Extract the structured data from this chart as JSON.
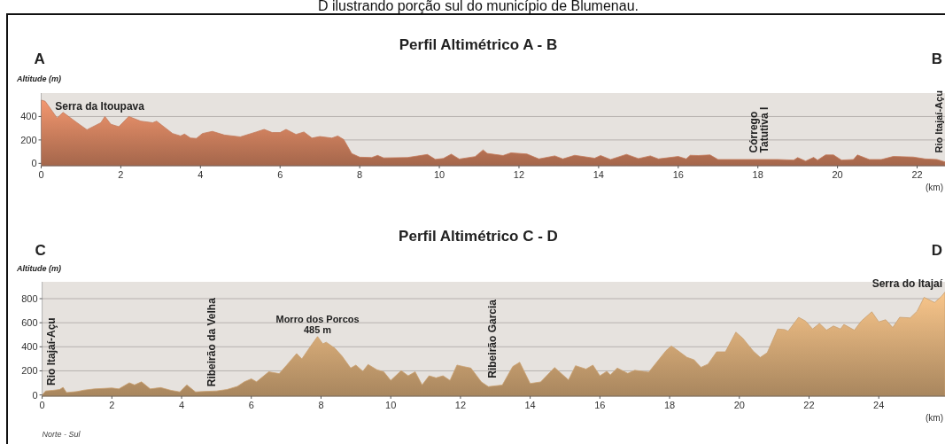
{
  "chart_data": [
    {
      "type": "area",
      "title": "Perfil Altimétrico A - B",
      "ylabel": "Altitude (m)",
      "xlabel": "(km)",
      "xlim": [
        0,
        22.7
      ],
      "ylim": [
        -20,
        600
      ],
      "xticks": [
        0,
        2,
        4,
        6,
        8,
        10,
        12,
        14,
        16,
        18,
        20,
        22
      ],
      "yticks": [
        0,
        200,
        400
      ],
      "grid": "y",
      "annotations": [
        "D ilustrando porção sul do município de Blumenau.",
        "A",
        "B",
        {
          "text": "Serra da Itoupava",
          "x": 0.35,
          "y": 460
        },
        {
          "text": "Córrego\nTatutiva I",
          "x": 18.15,
          "y": 60
        },
        {
          "text": "Rio Itajaí-Açu",
          "x": 22.6,
          "y": 60
        }
      ],
      "series": [
        {
          "color": "#c47a5a",
          "x": [
            0,
            0.1,
            0.4,
            0.55,
            0.9,
            1.15,
            1.5,
            1.6,
            1.75,
            1.95,
            2.2,
            2.5,
            2.8,
            2.9,
            3.3,
            3.5,
            3.6,
            3.75,
            3.9,
            4.05,
            4.3,
            4.6,
            5.0,
            5.4,
            5.6,
            5.8,
            6.0,
            6.15,
            6.4,
            6.6,
            6.8,
            7.0,
            7.3,
            7.45,
            7.6,
            7.8,
            8.0,
            8.3,
            8.45,
            8.6,
            9.2,
            9.7,
            9.9,
            10.1,
            10.3,
            10.5,
            10.9,
            11.1,
            11.2,
            11.6,
            11.8,
            12.2,
            12.5,
            12.9,
            13.1,
            13.4,
            13.9,
            14.05,
            14.3,
            14.7,
            15.0,
            15.3,
            15.5,
            16.0,
            16.2,
            16.3,
            16.5,
            16.8,
            17.0,
            18.5,
            18.9,
            19.0,
            19.2,
            19.4,
            19.5,
            19.7,
            19.9,
            20.1,
            20.4,
            20.5,
            20.8,
            21.1,
            21.4,
            21.9,
            22.2,
            22.5,
            22.7
          ],
          "values": [
            540,
            530,
            387,
            435,
            347,
            287,
            347,
            400,
            334,
            313,
            400,
            360,
            347,
            360,
            255,
            234,
            250,
            216,
            213,
            255,
            273,
            242,
            226,
            268,
            290,
            263,
            263,
            290,
            247,
            268,
            216,
            229,
            216,
            234,
            203,
            84,
            53,
            50,
            68,
            47,
            50,
            76,
            34,
            42,
            79,
            37,
            58,
            115,
            85,
            67,
            90,
            80,
            38,
            64,
            38,
            69,
            44,
            67,
            33,
            77,
            41,
            64,
            38,
            59,
            38,
            69,
            67,
            72,
            33,
            33,
            28,
            49,
            20,
            51,
            28,
            72,
            72,
            28,
            33,
            72,
            33,
            33,
            59,
            54,
            38,
            33,
            13
          ]
        }
      ]
    },
    {
      "type": "area",
      "title": "Perfil Altimétrico C - D",
      "ylabel": "Altitude (m)",
      "xlabel": "(km)",
      "xlim": [
        0,
        25.9
      ],
      "ylim": [
        -10,
        940
      ],
      "xticks": [
        0,
        2,
        4,
        6,
        8,
        10,
        12,
        14,
        16,
        18,
        20,
        22,
        24
      ],
      "yticks": [
        0,
        200,
        400,
        600,
        800
      ],
      "grid": "y",
      "annotations": [
        "C",
        "D",
        "Norte - Sul",
        "Rio Itajaí-Açu",
        {
          "text": "Ribeirão da Velha",
          "x": 4.85,
          "y": 40
        },
        {
          "text": "Morro dos Porcos\n485 m",
          "x": 7.9,
          "y": 485
        },
        {
          "text": "Ribeirão Garcia",
          "x": 12.9,
          "y": 110
        },
        {
          "text": "Serra do Itajaí",
          "x": 25.9,
          "y": 855
        }
      ],
      "series": [
        {
          "color": "#c9a070",
          "x": [
            0,
            0.1,
            0.3,
            0.5,
            0.6,
            0.7,
            1.0,
            1.2,
            1.5,
            2.0,
            2.2,
            2.5,
            2.65,
            2.85,
            3.1,
            3.4,
            3.7,
            3.95,
            4.15,
            4.4,
            4.6,
            5.0,
            5.3,
            5.6,
            5.8,
            6.0,
            6.15,
            6.5,
            6.8,
            7.0,
            7.3,
            7.45,
            7.7,
            7.9,
            8.05,
            8.15,
            8.4,
            8.6,
            8.85,
            9.0,
            9.2,
            9.35,
            9.6,
            9.8,
            10.0,
            10.3,
            10.5,
            10.7,
            10.9,
            11.1,
            11.3,
            11.5,
            11.7,
            11.9,
            12.1,
            12.3,
            12.6,
            12.8,
            13.2,
            13.5,
            13.7,
            14.0,
            14.3,
            14.7,
            15.1,
            15.3,
            15.6,
            15.8,
            16.0,
            16.2,
            16.3,
            16.5,
            16.8,
            17.0,
            17.4,
            17.6,
            17.9,
            18.05,
            18.2,
            18.5,
            18.7,
            18.9,
            19.1,
            19.35,
            19.6,
            19.9,
            20.1,
            20.4,
            20.6,
            20.8,
            21.1,
            21.3,
            21.4,
            21.7,
            21.9,
            22.1,
            22.3,
            22.5,
            22.7,
            22.9,
            23.0,
            23.3,
            23.5,
            23.8,
            24.0,
            24.2,
            24.4,
            24.6,
            24.9,
            25.1,
            25.3,
            25.6,
            25.8,
            25.9
          ],
          "values": [
            0,
            33,
            38,
            45,
            63,
            20,
            28,
            40,
            50,
            58,
            50,
            101,
            83,
            109,
            50,
            61,
            38,
            25,
            83,
            25,
            28,
            33,
            45,
            71,
            109,
            134,
            109,
            192,
            177,
            243,
            344,
            299,
            405,
            485,
            425,
            438,
            387,
            324,
            223,
            248,
            197,
            253,
            210,
            192,
            121,
            202,
            159,
            192,
            83,
            159,
            142,
            159,
            121,
            248,
            235,
            223,
            108,
            69,
            82,
            236,
            271,
            95,
            108,
            228,
            125,
            243,
            215,
            248,
            159,
            197,
            166,
            223,
            179,
            205,
            189,
            261,
            369,
            407,
            376,
            312,
            292,
            230,
            256,
            358,
            358,
            522,
            471,
            364,
            312,
            351,
            548,
            543,
            530,
            645,
            614,
            548,
            594,
            538,
            573,
            548,
            586,
            538,
            614,
            691,
            607,
            625,
            560,
            645,
            640,
            696,
            811,
            768,
            819,
            855
          ]
        }
      ]
    }
  ]
}
